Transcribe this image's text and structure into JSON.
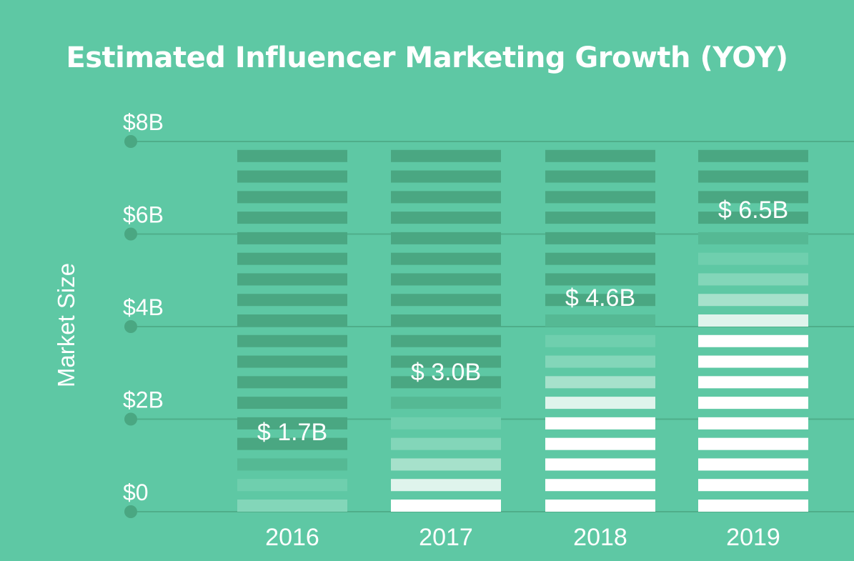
{
  "chart_data": {
    "type": "bar",
    "title": "Estimated Influencer Marketing Growth (YOY)",
    "ylabel": "Market Size",
    "xlabel": "",
    "categories": [
      "2016",
      "2017",
      "2018",
      "2019"
    ],
    "values": [
      1.7,
      3.0,
      4.6,
      6.5
    ],
    "value_labels": [
      "$ 1.7B",
      "$ 3.0B",
      "$ 4.6B",
      "$ 6.5B"
    ],
    "ylim": [
      0,
      8
    ],
    "yticks": [
      {
        "value": 0,
        "label": "$0"
      },
      {
        "value": 2,
        "label": "$2B"
      },
      {
        "value": 4,
        "label": "$4B"
      },
      {
        "value": 6,
        "label": "$6B"
      },
      {
        "value": 8,
        "label": "$8B"
      }
    ],
    "grid": true,
    "colors": {
      "background": "#5ec8a4",
      "empty_stripe": "#4aa782",
      "grid": "#4fae8a",
      "filled_stripe": "#ffffff",
      "label": "#ffffff"
    }
  }
}
